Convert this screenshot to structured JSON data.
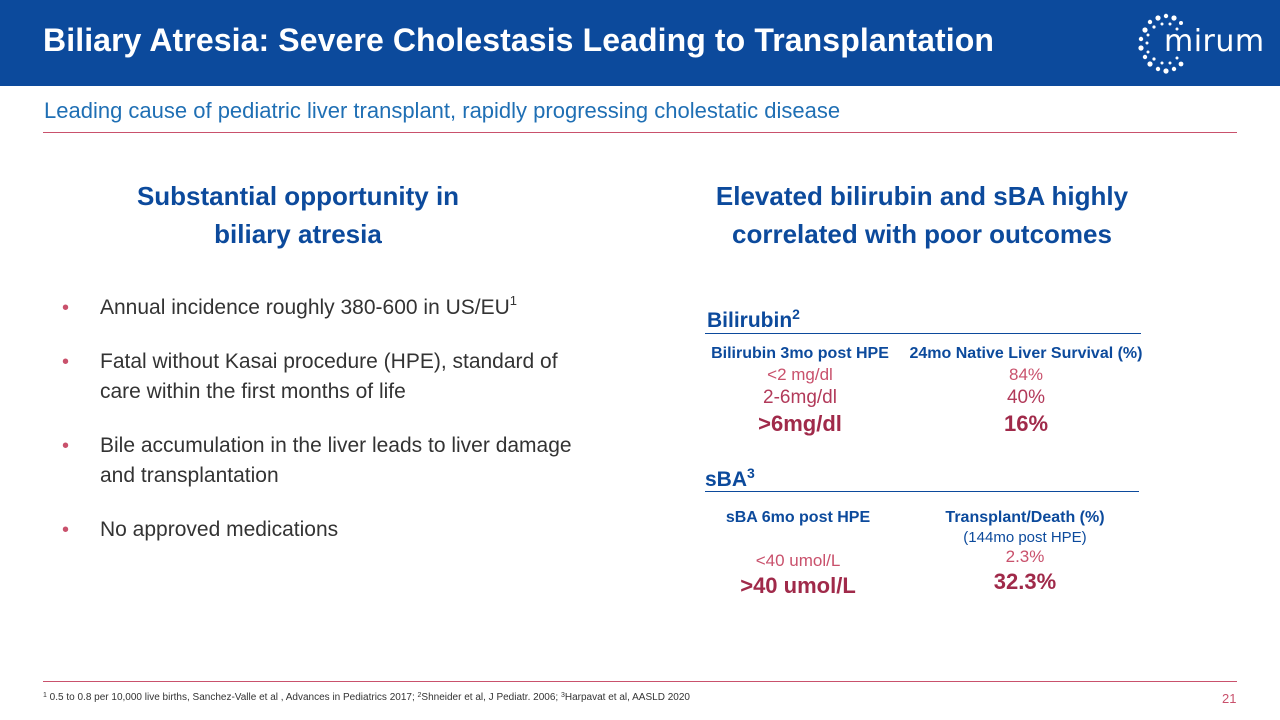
{
  "header": {
    "title": "Biliary Atresia: Severe Cholestasis Leading to Transplantation",
    "logo_text": "mirum"
  },
  "subtitle": "Leading cause of pediatric liver transplant, rapidly progressing cholestatic disease",
  "left": {
    "heading_line1": "Substantial opportunity in",
    "heading_line2": "biliary atresia",
    "bullets": [
      {
        "text": "Annual incidence roughly 380-600 in US/EU",
        "sup": "1"
      },
      {
        "text": "Fatal without Kasai procedure (HPE), standard of care within the first months of life"
      },
      {
        "text": "Bile accumulation in the liver leads to liver damage and transplantation"
      },
      {
        "text": "No approved medications"
      }
    ],
    "bullet_marker": "•"
  },
  "right": {
    "heading_line1": "Elevated bilirubin and sBA highly",
    "heading_line2": "correlated with poor outcomes",
    "bilirubin": {
      "label": "Bilirubin",
      "label_sup": "2",
      "col1_header": "Bilirubin 3mo post HPE",
      "col2_header": "24mo Native Liver Survival (%)",
      "rows": [
        {
          "level": "<2 mg/dl",
          "value": "84%"
        },
        {
          "level": "2-6mg/dl",
          "value": "40%"
        },
        {
          "level": ">6mg/dl",
          "value": "16%"
        }
      ]
    },
    "sba": {
      "label": "sBA",
      "label_sup": "3",
      "col1_header": "sBA 6mo post HPE",
      "col2_header": "Transplant/Death (%)",
      "col2_note": "(144mo post HPE)",
      "rows": [
        {
          "level": "<40 umol/L",
          "value": "2.3%"
        },
        {
          "level": ">40 umol/L",
          "value": "32.3%"
        }
      ]
    }
  },
  "footnote": {
    "sup1": "1",
    "part1": " 0.5 to 0.8 per 10,000 live births, Sanchez-Valle et al , Advances in Pediatrics 2017; ",
    "sup2": "2",
    "part2": "Shneider et al, J Pediatr. 2006; ",
    "sup3": "3",
    "part3": "Harpavat et al, AASLD 2020"
  },
  "page_number": "21",
  "colors": {
    "header_bg": "#0c4a9c",
    "accent": "#c9516c",
    "heading": "#0c4a9c",
    "subtitle": "#1f6fb4"
  }
}
